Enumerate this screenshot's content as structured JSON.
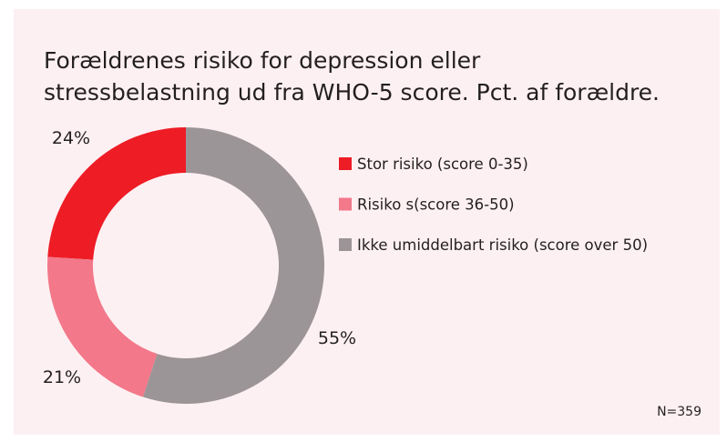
{
  "chart_data": {
    "type": "donut",
    "title": [
      "Forældrenes risiko for depression eller",
      "stressbelastning ud fra WHO-5 score. Pct. af forældre."
    ],
    "series": [
      {
        "name": "Stor risiko (score 0-35)",
        "color": "#ee1c25",
        "values": [
          24
        ],
        "value_labels": [
          "24%"
        ]
      },
      {
        "name": "Risiko s(score 36-50)",
        "color": "#f2788a",
        "values": [
          21
        ],
        "value_labels": [
          "21%"
        ]
      },
      {
        "name": "Ikke umiddelbart risiko (score over 50)",
        "color": "#9c9597",
        "values": [
          55
        ],
        "value_labels": [
          "55%"
        ]
      }
    ],
    "legend": "right",
    "note": "N=359"
  }
}
